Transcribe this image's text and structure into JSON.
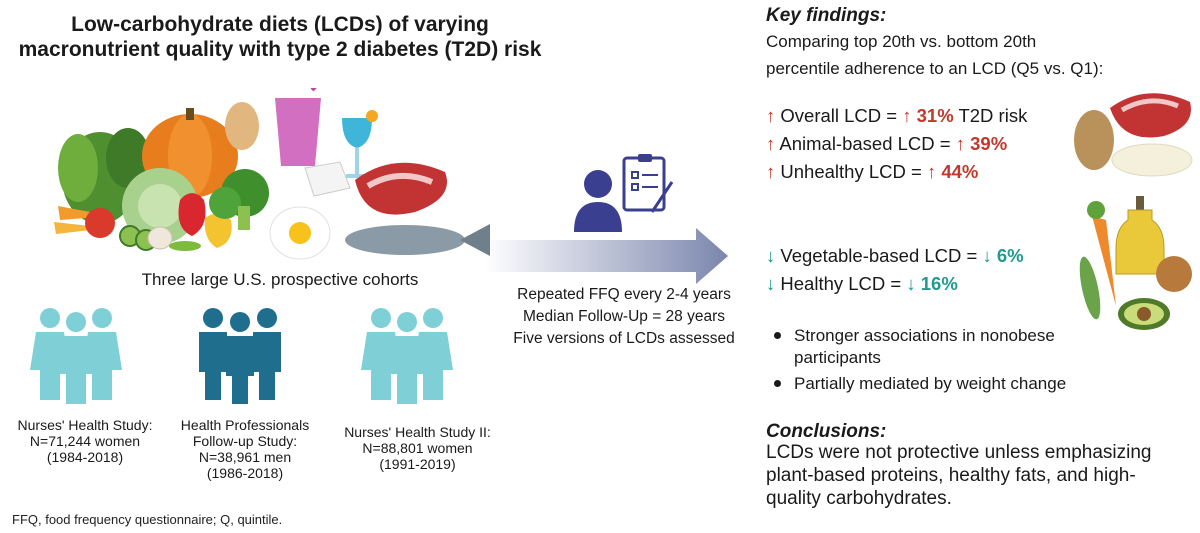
{
  "title_line1": "Low-carbohydrate diets (LCDs) of varying",
  "title_line2": "macronutrient quality with type 2 diabetes (T2D) risk",
  "cohorts_label": "Three large U.S. prospective cohorts",
  "cohorts": [
    {
      "lines": [
        "Nurses' Health Study:",
        "N=71,244 women",
        "(1984-2018)"
      ],
      "color": "#7fcfd6"
    },
    {
      "lines": [
        "Health Professionals",
        "Follow-up Study:",
        "N=38,961 men",
        "(1986-2018)"
      ],
      "color": "#1f6e8e"
    },
    {
      "lines": [
        "Nurses' Health Study II:",
        "N=88,801 women",
        "(1991-2019)"
      ],
      "color": "#7fcfd6"
    }
  ],
  "arrow_lines": [
    "Repeated FFQ every 2-4 years",
    "Median Follow-Up = 28 years",
    "Five versions of LCDs assessed"
  ],
  "key_findings_title": "Key findings:",
  "key_findings_sub": [
    "Comparing top 20th vs. bottom 20th",
    "percentile adherence to an LCD (Q5 vs. Q1):"
  ],
  "arrow_up": "↑",
  "arrow_down": "↓",
  "findings_up": [
    {
      "label": "Overall LCD = ",
      "value": "31%",
      "suffix": " T2D risk"
    },
    {
      "label": "Animal-based LCD = ",
      "value": "39%",
      "suffix": ""
    },
    {
      "label": "Unhealthy LCD = ",
      "value": "44%",
      "suffix": ""
    }
  ],
  "findings_down": [
    {
      "label": "Vegetable-based LCD = ",
      "value": "6%",
      "suffix": ""
    },
    {
      "label": "Healthy LCD = ",
      "value": "16%",
      "suffix": ""
    }
  ],
  "bullets": [
    "Stronger associations in nonobese participants",
    "Partially mediated by weight change"
  ],
  "conclusions_title": "Conclusions:",
  "conclusions_text": "LCDs were not protective unless emphasizing plant-based proteins, healthy fats, and high-quality carbohydrates.",
  "footnote": "FFQ, food frequency questionnaire; Q, quintile.",
  "colors": {
    "up": "#c0392b",
    "down": "#1f9b8f",
    "arrow": "#7b86ad",
    "person_light": "#7fcfd6",
    "person_dark": "#1f6e8e"
  }
}
